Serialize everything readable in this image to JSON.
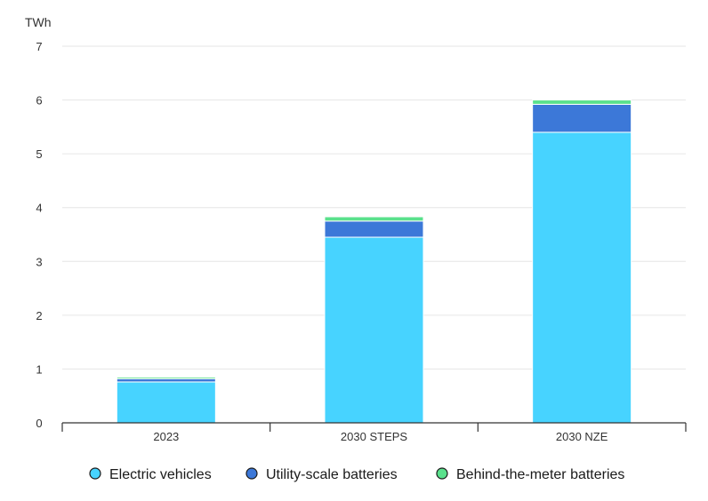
{
  "chart_data": {
    "type": "bar",
    "stacked": true,
    "unit_label": "TWh",
    "categories": [
      "2023",
      "2030 STEPS",
      "2030 NZE"
    ],
    "series": [
      {
        "name": "Electric vehicles",
        "color": "#47d3ff",
        "values": [
          0.76,
          3.45,
          5.4
        ]
      },
      {
        "name": "Utility-scale batteries",
        "color": "#3c78d8",
        "values": [
          0.06,
          0.3,
          0.52
        ]
      },
      {
        "name": "Behind-the-meter batteries",
        "color": "#5ae18c",
        "values": [
          0.03,
          0.08,
          0.08
        ]
      }
    ],
    "ylim": [
      0,
      7
    ],
    "yticks": [
      0,
      1,
      2,
      3,
      4,
      5,
      6,
      7
    ],
    "grid": true,
    "legend_position": "bottom"
  }
}
